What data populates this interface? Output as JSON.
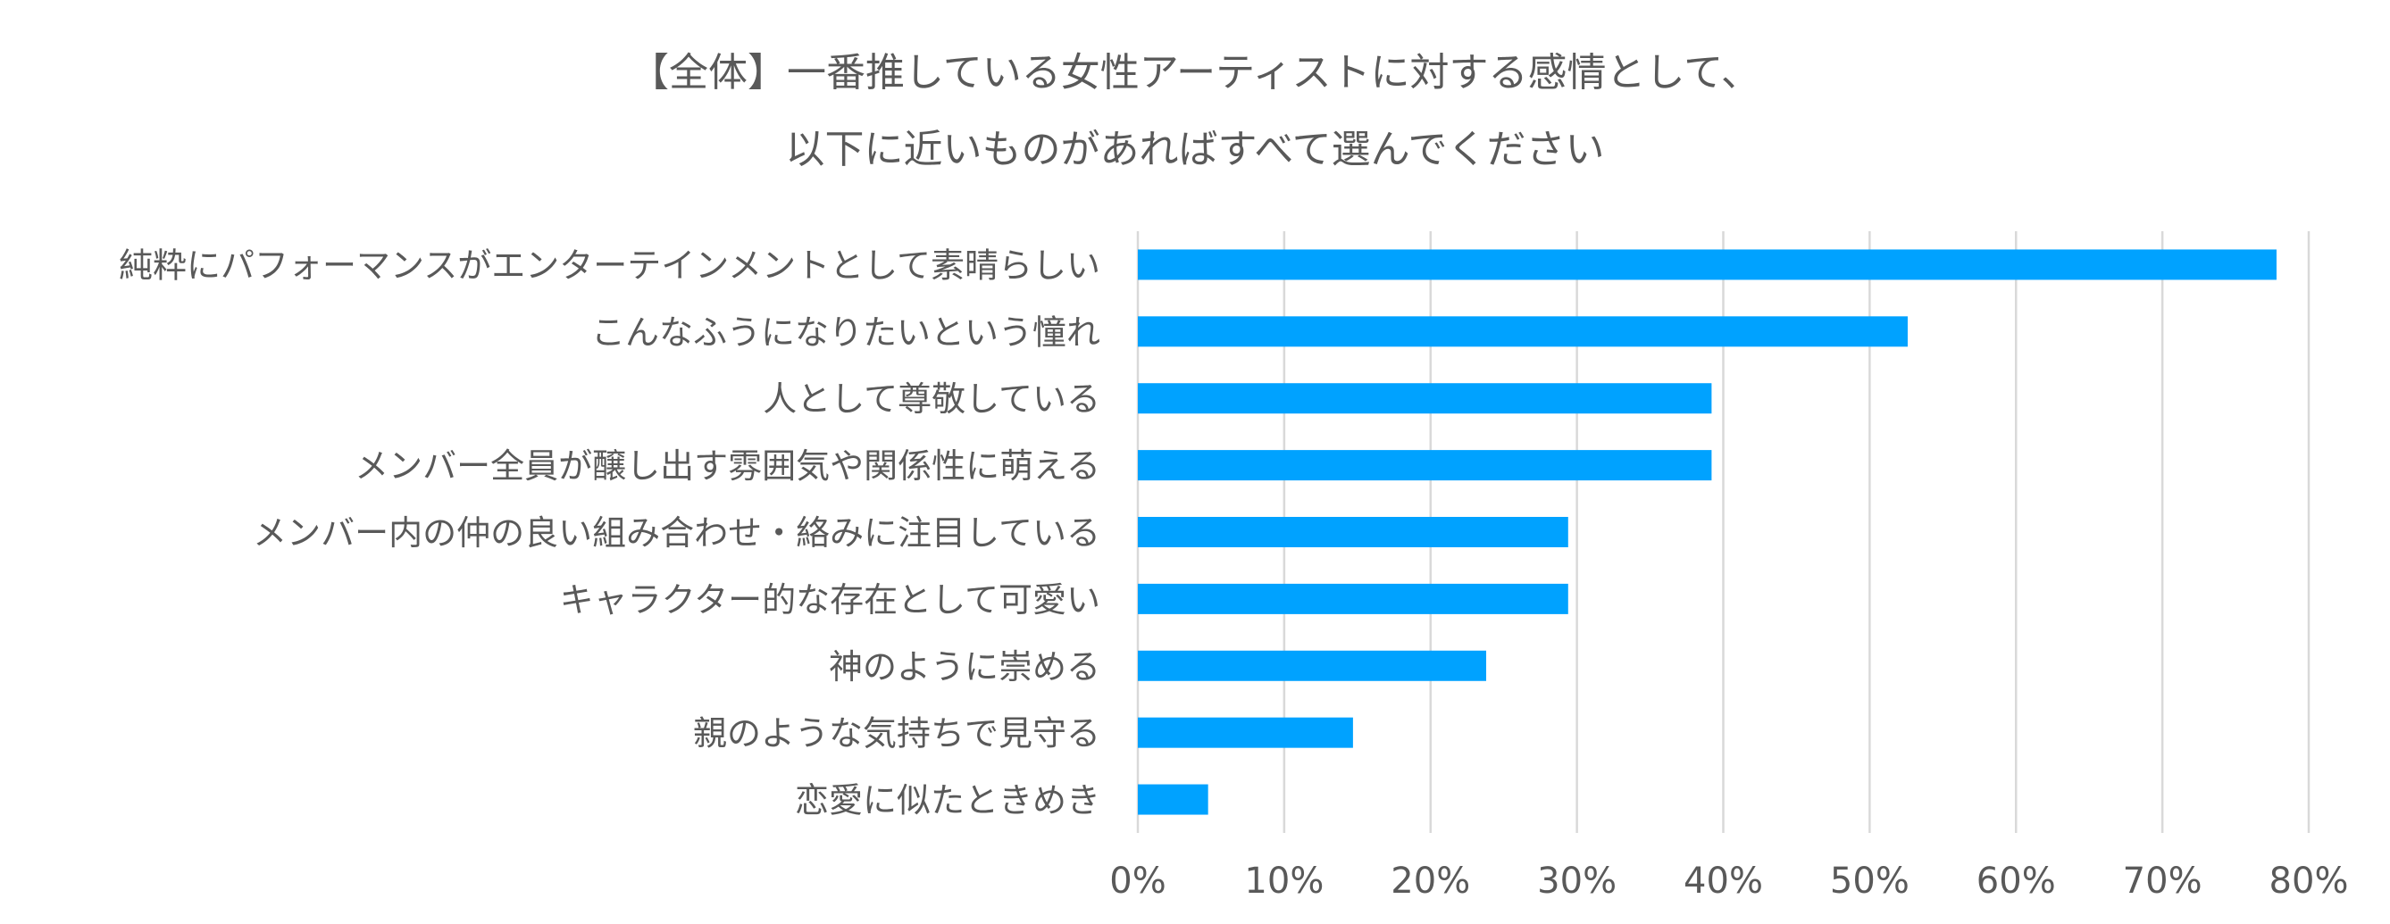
{
  "chart_data": {
    "type": "bar",
    "orientation": "horizontal",
    "title_lines": [
      "【全体】一番推している女性アーティストに対する感情として、",
      "以下に近いものがあればすべて選んでください"
    ],
    "categories": [
      "純粋にパフォーマンスがエンターテインメントとして素晴らしい",
      "こんなふうになりたいという憧れ",
      "人として尊敬している",
      "メンバー全員が醸し出す雰囲気や関係性に萌える",
      "メンバー内の仲の良い組み合わせ・絡みに注目している",
      "キャラクター的な存在として可愛い",
      "神のように崇める",
      "親のような気持ちで見守る",
      "恋愛に似たときめき"
    ],
    "values": [
      77.8,
      52.6,
      39.2,
      39.2,
      29.4,
      29.4,
      23.8,
      14.7,
      4.8
    ],
    "unit": "%",
    "xlim": [
      0,
      80
    ],
    "x_ticks": [
      "0%",
      "10%",
      "20%",
      "30%",
      "40%",
      "50%",
      "60%",
      "70%",
      "80%"
    ],
    "grid": "vertical",
    "legend": "none",
    "colors": {
      "bar": "#00A2FF",
      "grid": "#D9D9D9",
      "text": "#595959"
    }
  }
}
